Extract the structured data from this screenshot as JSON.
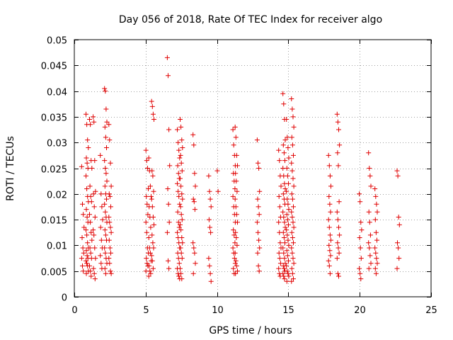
{
  "chart_data": {
    "type": "scatter",
    "title": "Day 056 of 2018, Rate Of TEC Index for receiver algo",
    "xlabel": "GPS time / hours",
    "ylabel": "ROTI / TECUs",
    "xlim": [
      0,
      25
    ],
    "ylim": [
      0,
      0.05
    ],
    "xticks": [
      0,
      5,
      10,
      15,
      20,
      25
    ],
    "xtick_labels": [
      "0",
      "5",
      "10",
      "15",
      "20",
      "25"
    ],
    "yticks": [
      0,
      0.005,
      0.01,
      0.015,
      0.02,
      0.025,
      0.03,
      0.035,
      0.04,
      0.045,
      0.05
    ],
    "ytick_labels": [
      "0",
      "0.005",
      "0.01",
      "0.015",
      "0.02",
      "0.025",
      "0.03",
      "0.035",
      "0.04",
      "0.045",
      "0.05"
    ],
    "grid": true,
    "marker": "+",
    "color": "#e00000",
    "clusters": [
      {
        "x": 0.6,
        "values": [
          0.0253,
          0.018,
          0.016,
          0.0135,
          0.0115,
          0.0095,
          0.0085,
          0.0075,
          0.006,
          0.005
        ]
      },
      {
        "x": 0.9,
        "values": [
          0.0355,
          0.0335,
          0.0305,
          0.029,
          0.027,
          0.026,
          0.025,
          0.0235,
          0.021,
          0.0195,
          0.0185,
          0.017,
          0.0155,
          0.0145,
          0.013,
          0.012,
          0.0105,
          0.0095,
          0.009,
          0.008,
          0.0075,
          0.007,
          0.0065,
          0.006,
          0.005,
          0.0045
        ]
      },
      {
        "x": 1.15,
        "values": [
          0.0345,
          0.0335,
          0.0265,
          0.025,
          0.0215,
          0.0195,
          0.0185,
          0.016,
          0.0145,
          0.0125,
          0.011,
          0.0095,
          0.0085,
          0.0075,
          0.006,
          0.005,
          0.004
        ]
      },
      {
        "x": 1.4,
        "values": [
          0.035,
          0.034,
          0.0265,
          0.0205,
          0.02,
          0.0175,
          0.0155,
          0.013,
          0.012,
          0.0095,
          0.0075,
          0.0055,
          0.0045,
          0.0035
        ]
      },
      {
        "x": 1.9,
        "values": [
          0.0275,
          0.02,
          0.0175,
          0.015,
          0.0135,
          0.011,
          0.0095,
          0.008,
          0.0065,
          0.0055
        ]
      },
      {
        "x": 2.2,
        "values": [
          0.0405,
          0.04,
          0.0365,
          0.034,
          0.033,
          0.031,
          0.029,
          0.0265,
          0.025,
          0.024,
          0.0225,
          0.0215,
          0.02,
          0.019,
          0.018,
          0.0165,
          0.0155,
          0.0145,
          0.013,
          0.012,
          0.011,
          0.0095,
          0.0085,
          0.0075,
          0.0065,
          0.0055,
          0.0045
        ]
      },
      {
        "x": 2.5,
        "values": [
          0.0335,
          0.0305,
          0.026,
          0.0215,
          0.02,
          0.0195,
          0.0175,
          0.0155,
          0.0145,
          0.0135,
          0.0125,
          0.011,
          0.0095,
          0.0085,
          0.0075,
          0.0065,
          0.005,
          0.0045
        ]
      },
      {
        "x": 5.1,
        "values": [
          0.0285,
          0.0265,
          0.025,
          0.021,
          0.0195,
          0.018,
          0.016,
          0.0145,
          0.0125,
          0.0095,
          0.0085,
          0.0075,
          0.0065,
          0.006,
          0.005
        ]
      },
      {
        "x": 5.3,
        "values": [
          0.027,
          0.0245,
          0.0215,
          0.0195,
          0.0175,
          0.0155,
          0.0135,
          0.0115,
          0.0095,
          0.0085,
          0.007,
          0.006,
          0.005,
          0.0045,
          0.004
        ]
      },
      {
        "x": 5.5,
        "values": [
          0.038,
          0.037,
          0.0355,
          0.0345,
          0.0245,
          0.0235,
          0.0205,
          0.019,
          0.0175,
          0.0155,
          0.014,
          0.012,
          0.0105,
          0.0095,
          0.008,
          0.007,
          0.0055
        ]
      },
      {
        "x": 6.6,
        "values": [
          0.0465,
          0.043,
          0.0325,
          0.0255,
          0.021,
          0.018,
          0.0145,
          0.0125,
          0.007,
          0.0055
        ]
      },
      {
        "x": 7.3,
        "values": [
          0.0325,
          0.03,
          0.0285,
          0.027,
          0.0255,
          0.024,
          0.023,
          0.022,
          0.0205,
          0.0195,
          0.018,
          0.0165,
          0.0145,
          0.0135,
          0.0125,
          0.0115,
          0.0105,
          0.0095,
          0.0085,
          0.0075,
          0.0065,
          0.0055,
          0.0045,
          0.004,
          0.0035
        ]
      },
      {
        "x": 7.5,
        "values": [
          0.0345,
          0.033,
          0.0305,
          0.029,
          0.0275,
          0.026,
          0.0245,
          0.023,
          0.0215,
          0.02,
          0.019,
          0.0175,
          0.016,
          0.015,
          0.014,
          0.013,
          0.0115,
          0.0105,
          0.0095,
          0.0085,
          0.0075,
          0.0055,
          0.0045,
          0.0035
        ]
      },
      {
        "x": 8.4,
        "values": [
          0.0315,
          0.0295,
          0.024,
          0.0215,
          0.019,
          0.0185,
          0.017,
          0.0105,
          0.0095,
          0.0085,
          0.0065,
          0.0045
        ]
      },
      {
        "x": 9.5,
        "values": [
          0.0235,
          0.0205,
          0.019,
          0.0175,
          0.015,
          0.0135,
          0.0125,
          0.0075,
          0.006,
          0.0045,
          0.003
        ]
      },
      {
        "x": 10.1,
        "values": [
          0.0245,
          0.0205
        ]
      },
      {
        "x": 11.2,
        "values": [
          0.0325,
          0.0295,
          0.0275,
          0.0255,
          0.024,
          0.0225,
          0.021,
          0.0195,
          0.0175,
          0.016,
          0.0145,
          0.013,
          0.012,
          0.0105,
          0.0095,
          0.0085,
          0.0075,
          0.0065,
          0.0055,
          0.0045
        ]
      },
      {
        "x": 11.35,
        "values": [
          0.033,
          0.031,
          0.0275,
          0.0255,
          0.024,
          0.0225,
          0.0205,
          0.019,
          0.0175,
          0.016,
          0.0145,
          0.0125,
          0.0115,
          0.01,
          0.0085,
          0.007,
          0.006,
          0.005,
          0.0045
        ]
      },
      {
        "x": 12.9,
        "values": [
          0.0305,
          0.026,
          0.025,
          0.0205,
          0.019,
          0.0175,
          0.016,
          0.0145,
          0.0125,
          0.011,
          0.0095,
          0.0085,
          0.006,
          0.005
        ]
      },
      {
        "x": 14.4,
        "values": [
          0.0285,
          0.0265,
          0.0235,
          0.0215,
          0.0195,
          0.0175,
          0.0155,
          0.0145,
          0.0125,
          0.0105,
          0.0095,
          0.0085,
          0.0075,
          0.0065,
          0.0055,
          0.0045,
          0.004
        ]
      },
      {
        "x": 14.7,
        "values": [
          0.0395,
          0.0375,
          0.0345,
          0.0305,
          0.0295,
          0.028,
          0.0265,
          0.025,
          0.0235,
          0.022,
          0.021,
          0.02,
          0.019,
          0.018,
          0.0165,
          0.0155,
          0.0145,
          0.0135,
          0.0125,
          0.0115,
          0.0105,
          0.0095,
          0.0085,
          0.0075,
          0.0065,
          0.006,
          0.0055,
          0.005,
          0.0045,
          0.004,
          0.0035
        ]
      },
      {
        "x": 14.95,
        "values": [
          0.0345,
          0.031,
          0.029,
          0.027,
          0.025,
          0.0235,
          0.022,
          0.0205,
          0.019,
          0.018,
          0.017,
          0.016,
          0.015,
          0.014,
          0.013,
          0.012,
          0.011,
          0.01,
          0.009,
          0.008,
          0.007,
          0.006,
          0.005,
          0.0045,
          0.004,
          0.003
        ]
      },
      {
        "x": 15.3,
        "values": [
          0.0385,
          0.0365,
          0.035,
          0.033,
          0.031,
          0.0295,
          0.0275,
          0.026,
          0.0245,
          0.023,
          0.0215,
          0.02,
          0.019,
          0.0175,
          0.0165,
          0.0155,
          0.0145,
          0.0135,
          0.0125,
          0.0115,
          0.0105,
          0.0095,
          0.0085,
          0.0075,
          0.0065,
          0.0055,
          0.0045,
          0.0035,
          0.003
        ]
      },
      {
        "x": 17.9,
        "values": [
          0.0275,
          0.0255,
          0.0235,
          0.0215,
          0.0195,
          0.018,
          0.0165,
          0.015,
          0.0135,
          0.012,
          0.011,
          0.01,
          0.009,
          0.008,
          0.007,
          0.006,
          0.0045
        ]
      },
      {
        "x": 18.5,
        "values": [
          0.0355,
          0.034,
          0.0325,
          0.0295,
          0.028,
          0.0255,
          0.0185,
          0.0165,
          0.015,
          0.0135,
          0.012,
          0.0105,
          0.0095,
          0.0085,
          0.0075,
          0.0045,
          0.004
        ]
      },
      {
        "x": 20.05,
        "values": [
          0.02,
          0.0185,
          0.0145,
          0.013,
          0.0115,
          0.0095,
          0.0075,
          0.0055,
          0.0045,
          0.0035
        ]
      },
      {
        "x": 20.7,
        "values": [
          0.028,
          0.025,
          0.0235,
          0.0215,
          0.0165,
          0.0145,
          0.012,
          0.0105,
          0.0095,
          0.008,
          0.0065,
          0.0055
        ]
      },
      {
        "x": 21.15,
        "values": [
          0.021,
          0.0195,
          0.018,
          0.0165,
          0.015,
          0.0125,
          0.011,
          0.0095,
          0.0085,
          0.0075,
          0.0065,
          0.0055,
          0.0045
        ]
      },
      {
        "x": 22.7,
        "values": [
          0.0245,
          0.0235,
          0.0155,
          0.014,
          0.0105,
          0.0095,
          0.0075,
          0.0055
        ]
      }
    ]
  }
}
